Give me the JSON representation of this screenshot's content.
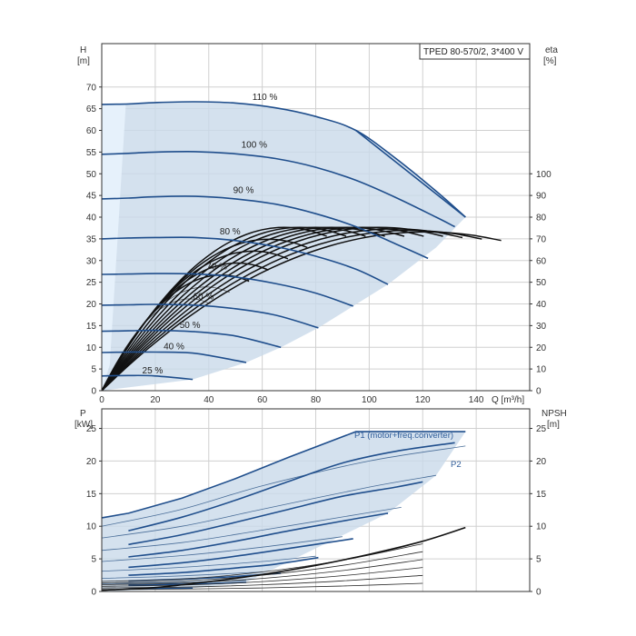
{
  "chart_data": [
    {
      "type": "line",
      "title": "TPED 80-570/2, 3*400 V",
      "xlabel": "Q [m³/h]",
      "ylabel_left": "H",
      "ylabel_left_unit": "[m]",
      "ylabel_right": "eta",
      "ylabel_right_unit": "[%]",
      "xlim": [
        0,
        160
      ],
      "ylim": [
        0,
        80
      ],
      "x_ticks": [
        "0",
        "20",
        "40",
        "60",
        "80",
        "100",
        "120",
        "140"
      ],
      "y_ticks": [
        "0",
        "5",
        "10",
        "15",
        "20",
        "25",
        "30",
        "35",
        "40",
        "45",
        "50",
        "55",
        "60",
        "65",
        "70"
      ],
      "right_ticks": [
        "0",
        "10",
        "20",
        "30",
        "40",
        "50",
        "60",
        "70",
        "80",
        "90",
        "100"
      ],
      "grid": true,
      "speed_curves": [
        {
          "name": "110 %",
          "x": [
            0,
            10,
            20,
            35,
            50,
            65,
            80,
            95,
            110,
            125,
            136
          ],
          "y": [
            66,
            66.1,
            66.4,
            66.6,
            66.3,
            65.2,
            63.2,
            60.0,
            53.5,
            46.0,
            40.0
          ]
        },
        {
          "name": "100 %",
          "x": [
            0,
            10,
            20,
            35,
            50,
            65,
            80,
            95,
            110,
            125,
            132
          ],
          "y": [
            54.5,
            54.7,
            55.0,
            55.1,
            54.6,
            53.5,
            51.5,
            48.5,
            44.5,
            40.0,
            37.8
          ]
        },
        {
          "name": "90 %",
          "x": [
            0,
            10,
            20,
            35,
            50,
            65,
            80,
            95,
            110,
            122
          ],
          "y": [
            44.2,
            44.4,
            44.7,
            44.8,
            44.2,
            43.0,
            40.8,
            37.8,
            33.8,
            30.5
          ]
        },
        {
          "name": "80 %",
          "x": [
            0,
            10,
            20,
            35,
            50,
            65,
            80,
            95,
            107
          ],
          "y": [
            35.0,
            35.2,
            35.3,
            35.3,
            34.6,
            33.2,
            31.0,
            28.0,
            24.5
          ]
        },
        {
          "name": "70 %",
          "x": [
            0,
            10,
            20,
            35,
            50,
            65,
            80,
            94
          ],
          "y": [
            26.8,
            26.9,
            27.0,
            26.9,
            26.2,
            24.7,
            22.5,
            19.5
          ]
        },
        {
          "name": "60 %",
          "x": [
            0,
            10,
            20,
            35,
            50,
            65,
            81
          ],
          "y": [
            19.7,
            19.8,
            19.9,
            19.7,
            18.9,
            17.4,
            14.5
          ]
        },
        {
          "name": "50 %",
          "x": [
            0,
            10,
            20,
            35,
            50,
            67
          ],
          "y": [
            13.7,
            13.8,
            13.9,
            13.6,
            12.6,
            10.0
          ]
        },
        {
          "name": "40 %",
          "x": [
            0,
            10,
            20,
            35,
            54
          ],
          "y": [
            8.8,
            8.9,
            8.9,
            8.6,
            6.5
          ]
        },
        {
          "name": "25 %",
          "x": [
            0,
            10,
            20,
            34
          ],
          "y": [
            3.4,
            3.5,
            3.4,
            2.6
          ]
        }
      ],
      "labels_at": [
        {
          "text": "110 %",
          "x": 61,
          "y": 67
        },
        {
          "text": "100 %",
          "x": 57,
          "y": 56
        },
        {
          "text": "90 %",
          "x": 53,
          "y": 45.5
        },
        {
          "text": "80 %",
          "x": 48,
          "y": 36
        },
        {
          "text": "70 %",
          "x": 43,
          "y": 28
        },
        {
          "text": "60 %",
          "x": 38,
          "y": 21
        },
        {
          "text": "50 %",
          "x": 33,
          "y": 14.5
        },
        {
          "text": "40 %",
          "x": 27,
          "y": 9.5
        },
        {
          "text": "25 %",
          "x": 19,
          "y": 4
        }
      ],
      "operating_envelope": {
        "x": [
          0,
          10,
          20,
          35,
          50,
          65,
          80,
          95,
          110,
          125,
          136,
          125,
          107,
          94,
          81,
          67,
          54,
          34,
          0
        ],
        "y": [
          66,
          66.1,
          66.4,
          66.6,
          66.3,
          65.2,
          63.2,
          60.0,
          53.5,
          46.0,
          40.0,
          33.0,
          24.5,
          19.5,
          14.5,
          10.0,
          6.5,
          2.6,
          0
        ]
      },
      "efficiency_curve_peaks_x": [
        28,
        33,
        38,
        43,
        48,
        53,
        58,
        63,
        68,
        73,
        78,
        83,
        88,
        93,
        98,
        103
      ],
      "efficiency_max_eta": 64
    },
    {
      "type": "line",
      "ylabel_left": "P",
      "ylabel_left_unit": "[kW]",
      "ylabel_right": "NPSH",
      "ylabel_right_unit": "[m]",
      "xlim": [
        0,
        160
      ],
      "ylim": [
        0,
        28
      ],
      "y_ticks": [
        "0",
        "5",
        "10",
        "15",
        "20",
        "25"
      ],
      "right_ticks": [
        "0",
        "5",
        "10",
        "15",
        "20",
        "25"
      ],
      "grid": true,
      "series_labels": [
        "P1 (motor+freq.converter)",
        "P2"
      ],
      "p1_envelope": {
        "x": [
          0,
          10,
          30,
          50,
          70,
          95,
          136
        ],
        "y": [
          11.3,
          12.0,
          14.3,
          17.3,
          20.6,
          24.5,
          24.5
        ]
      },
      "power_curves": [
        {
          "x": [
            10,
            30,
            50,
            70,
            90,
            110,
            132
          ],
          "y": [
            9.3,
            11.4,
            14.0,
            16.9,
            19.7,
            21.5,
            22.8
          ]
        },
        {
          "x": [
            10,
            30,
            50,
            70,
            90,
            110,
            120
          ],
          "y": [
            7.2,
            8.7,
            10.6,
            12.6,
            14.6,
            16.0,
            16.8
          ]
        },
        {
          "x": [
            10,
            30,
            50,
            70,
            90,
            107
          ],
          "y": [
            5.3,
            6.3,
            7.7,
            9.3,
            10.8,
            12.0
          ]
        },
        {
          "x": [
            10,
            30,
            50,
            70,
            94
          ],
          "y": [
            3.7,
            4.4,
            5.4,
            6.6,
            8.1
          ]
        },
        {
          "x": [
            10,
            30,
            50,
            65,
            81
          ],
          "y": [
            2.5,
            2.9,
            3.6,
            4.2,
            5.2
          ]
        },
        {
          "x": [
            10,
            30,
            50,
            67
          ],
          "y": [
            1.6,
            1.9,
            2.3,
            2.8
          ]
        },
        {
          "x": [
            10,
            30,
            54
          ],
          "y": [
            1.0,
            1.1,
            1.4
          ]
        },
        {
          "x": [
            10,
            34
          ],
          "y": [
            0.4,
            0.5
          ]
        }
      ],
      "thin_curves": [
        {
          "x": [
            0,
            30,
            60,
            100,
            136
          ],
          "y": [
            10.0,
            12.6,
            16.2,
            20.0,
            22.3
          ]
        },
        {
          "x": [
            0,
            30,
            60,
            100,
            125
          ],
          "y": [
            8.2,
            10.0,
            12.6,
            16.0,
            17.8
          ]
        },
        {
          "x": [
            0,
            30,
            60,
            100,
            112
          ],
          "y": [
            6.3,
            7.5,
            9.4,
            12.1,
            12.9
          ]
        },
        {
          "x": [
            0,
            30,
            60,
            90
          ],
          "y": [
            4.6,
            5.5,
            6.8,
            8.4
          ]
        },
        {
          "x": [
            0,
            30,
            60,
            80
          ],
          "y": [
            3.1,
            3.7,
            4.6,
            5.4
          ]
        },
        {
          "x": [
            0,
            30,
            60
          ],
          "y": [
            2.0,
            2.4,
            3.0
          ]
        },
        {
          "x": [
            0,
            30,
            54
          ],
          "y": [
            1.2,
            1.4,
            1.7
          ]
        }
      ],
      "npsh_curve": {
        "x": [
          0,
          20,
          40,
          60,
          80,
          100,
          120,
          136
        ],
        "y": [
          0.2,
          0.6,
          1.5,
          2.6,
          4.0,
          5.7,
          7.7,
          9.8
        ]
      }
    }
  ]
}
